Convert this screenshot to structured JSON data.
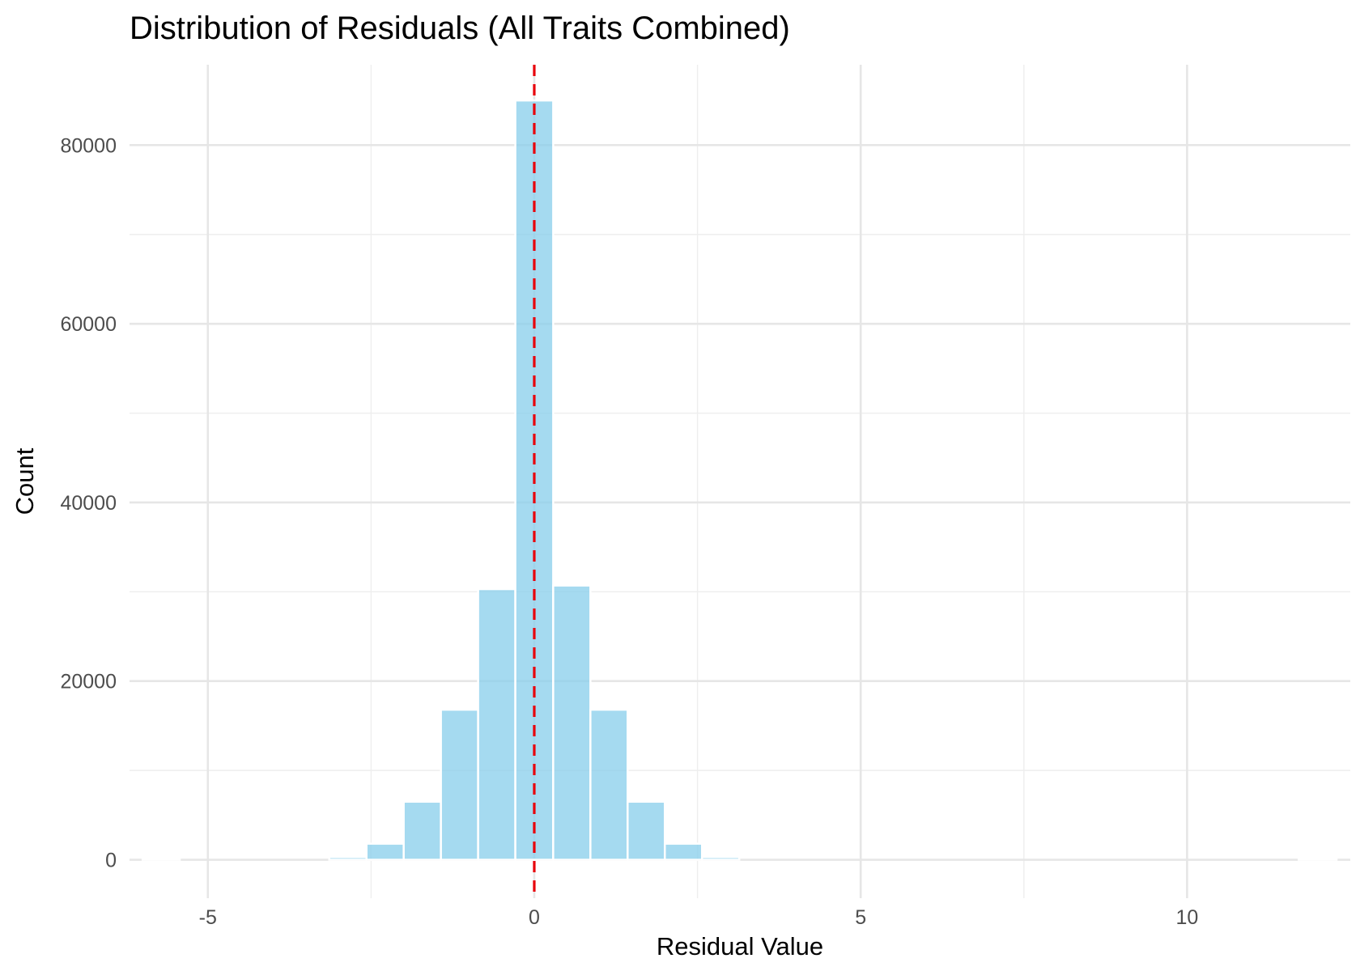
{
  "chart_data": {
    "type": "bar",
    "title": "Distribution of Residuals (All Traits Combined)",
    "xlabel": "Residual Value",
    "ylabel": "Count",
    "xlim": [
      -6.2,
      12.5
    ],
    "ylim": [
      -4300,
      89000
    ],
    "x_ticks": [
      -5,
      0,
      5,
      10
    ],
    "x_tick_labels": [
      "-5",
      "0",
      "5",
      "10"
    ],
    "y_ticks": [
      0,
      20000,
      40000,
      60000,
      80000
    ],
    "y_tick_labels": [
      "0",
      "20000",
      "40000",
      "60000",
      "80000"
    ],
    "bin_width": 0.5714,
    "bins": [
      {
        "start": -6.0,
        "end": -5.43,
        "count": 40
      },
      {
        "start": -3.14,
        "end": -2.57,
        "count": 300
      },
      {
        "start": -2.57,
        "end": -2.0,
        "count": 1800
      },
      {
        "start": -2.0,
        "end": -1.43,
        "count": 6500
      },
      {
        "start": -1.43,
        "end": -0.86,
        "count": 16800
      },
      {
        "start": -0.86,
        "end": -0.29,
        "count": 30300
      },
      {
        "start": -0.29,
        "end": 0.29,
        "count": 85000
      },
      {
        "start": 0.29,
        "end": 0.86,
        "count": 30700
      },
      {
        "start": 0.86,
        "end": 1.43,
        "count": 16800
      },
      {
        "start": 1.43,
        "end": 2.0,
        "count": 6500
      },
      {
        "start": 2.0,
        "end": 2.57,
        "count": 1800
      },
      {
        "start": 2.57,
        "end": 3.14,
        "count": 300
      },
      {
        "start": 11.71,
        "end": 12.29,
        "count": 30
      }
    ],
    "reference_line": {
      "x": 0,
      "style": "dashed",
      "color": "#e8000b"
    },
    "bar_fill": "#87ceeb",
    "bar_opacity": 0.75,
    "bar_stroke": "#ffffff",
    "grid": true,
    "legend": "none"
  }
}
